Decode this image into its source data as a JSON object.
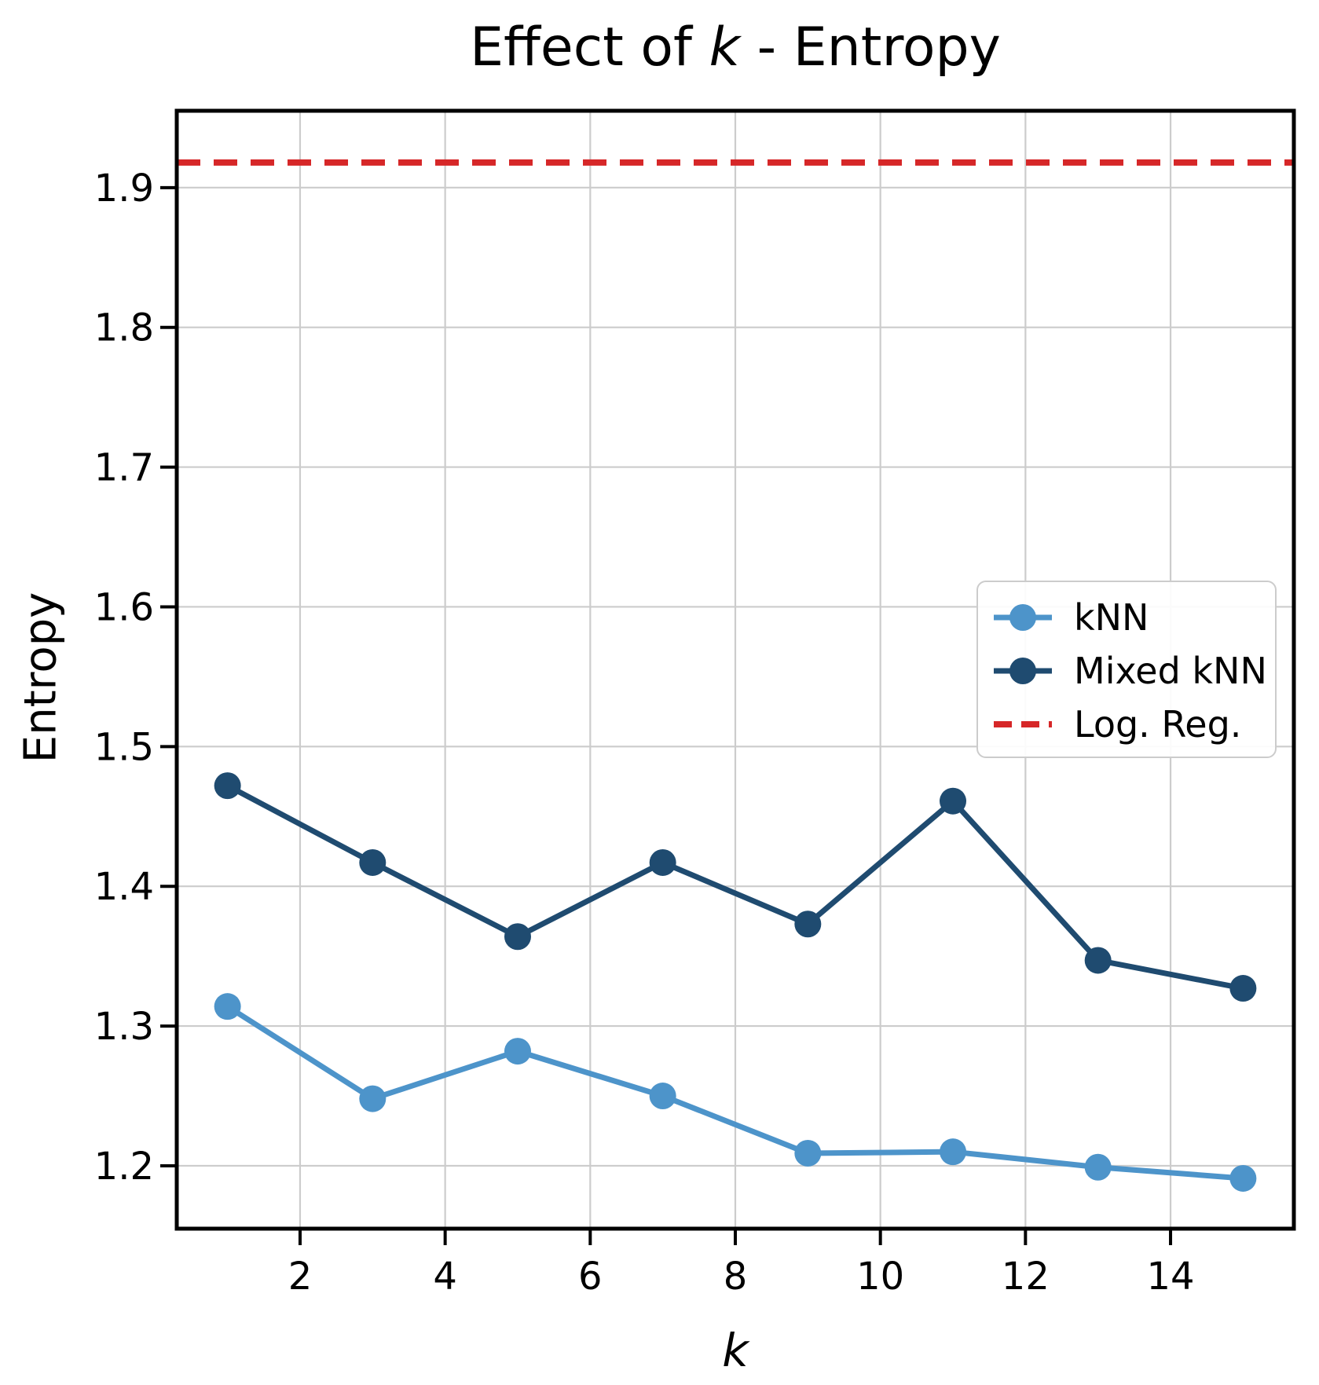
{
  "title_parts": {
    "prefix": "Effect of ",
    "italic_k": "k",
    "suffix": " - Entropy"
  },
  "chart_data": {
    "type": "line",
    "title": "Effect of k - Entropy",
    "xlabel": "k",
    "ylabel": "Entropy",
    "x": [
      1,
      3,
      5,
      7,
      9,
      11,
      13,
      15
    ],
    "series": [
      {
        "name": "kNN",
        "color": "#4D94CA",
        "style": "solid-with-markers",
        "values": [
          1.314,
          1.248,
          1.282,
          1.25,
          1.209,
          1.21,
          1.199,
          1.191
        ]
      },
      {
        "name": "Mixed kNN",
        "color": "#1F4B70",
        "style": "solid-with-markers",
        "values": [
          1.472,
          1.417,
          1.364,
          1.417,
          1.373,
          1.461,
          1.347,
          1.327
        ]
      },
      {
        "name": "Log. Reg.",
        "color": "#D62728",
        "style": "dashed-hline",
        "value": 1.918
      }
    ],
    "xticks": [
      2,
      4,
      6,
      8,
      10,
      12,
      14
    ],
    "yticks": [
      1.2,
      1.3,
      1.4,
      1.5,
      1.6,
      1.7,
      1.8,
      1.9
    ],
    "xlim": [
      0.3,
      15.7
    ],
    "ylim": [
      1.155,
      1.955
    ],
    "grid": true,
    "legend_position": "center right"
  },
  "style": {
    "grid_color": "#cccccc",
    "spine_color": "#000000",
    "tick_color": "#000000",
    "text_color": "#000000",
    "background": "#ffffff",
    "legend_border": "#cccccc"
  }
}
